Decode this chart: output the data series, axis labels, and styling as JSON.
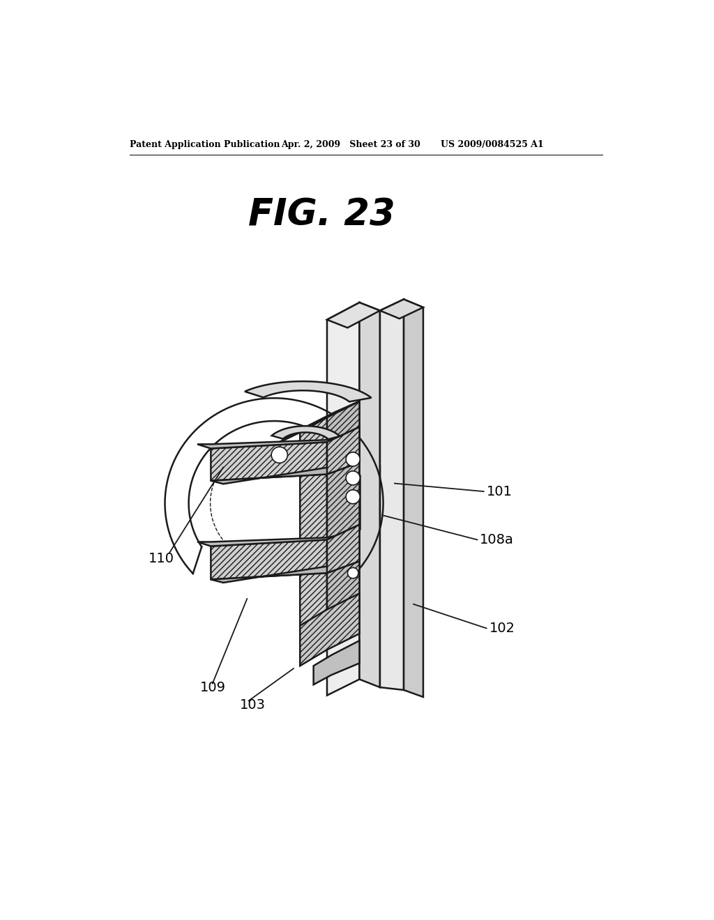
{
  "bg_color": "#ffffff",
  "header_left": "Patent Application Publication",
  "header_mid": "Apr. 2, 2009   Sheet 23 of 30",
  "header_right": "US 2009/0084525 A1",
  "figure_title": "FIG. 23",
  "lc": "#1a1a1a",
  "tc": "#000000",
  "header_fontsize": 9,
  "title_fontsize": 38,
  "label_fontsize": 14
}
